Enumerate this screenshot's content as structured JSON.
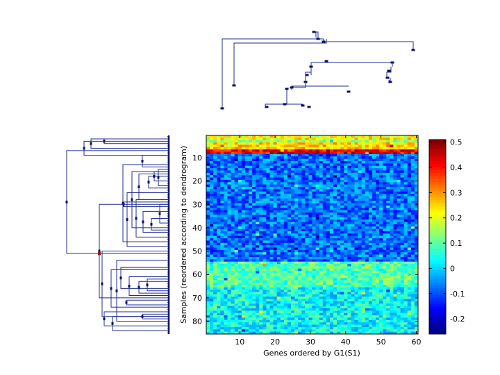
{
  "chart_data": {
    "type": "heatmap",
    "title": "",
    "xlabel": "Genes ordered by G1(S1)",
    "ylabel": "Samples (reordered according to dendrogram)",
    "n_genes": 60,
    "n_samples": 85,
    "xlim": [
      0.5,
      60.5
    ],
    "ylim": [
      0.5,
      85.5
    ],
    "x_ticks": [
      10,
      20,
      30,
      40,
      50,
      60
    ],
    "y_ticks": [
      10,
      20,
      30,
      40,
      50,
      60,
      70,
      80
    ],
    "colorbar": {
      "colormap": "jet",
      "min": -0.26,
      "max": 0.51,
      "ticks": [
        0.5,
        0.4,
        0.3,
        0.2,
        0.1,
        0,
        -0.1,
        -0.2
      ],
      "tick_labels": [
        "0.5",
        "0.4",
        "0.3",
        "0.2",
        "0.1",
        "0",
        "-0.1",
        "-0.2"
      ]
    },
    "row_block_means": [
      {
        "rows": [
          1,
          2
        ],
        "mean": 0.22
      },
      {
        "rows": [
          3,
          3
        ],
        "mean": 0.14
      },
      {
        "rows": [
          4,
          6
        ],
        "mean": 0.25
      },
      {
        "rows": [
          7,
          8
        ],
        "mean": 0.43
      },
      {
        "rows": [
          9,
          54
        ],
        "mean": -0.08
      },
      {
        "rows": [
          55,
          65
        ],
        "mean": 0.09
      },
      {
        "rows": [
          66,
          85
        ],
        "mean": 0.03
      }
    ],
    "row_dendrogram": true,
    "column_dendrogram": true,
    "grid": false
  },
  "colors": {
    "dendrogram": "#1f2b8f",
    "node": "#0b1160",
    "root_node": "#8b1a1a"
  }
}
